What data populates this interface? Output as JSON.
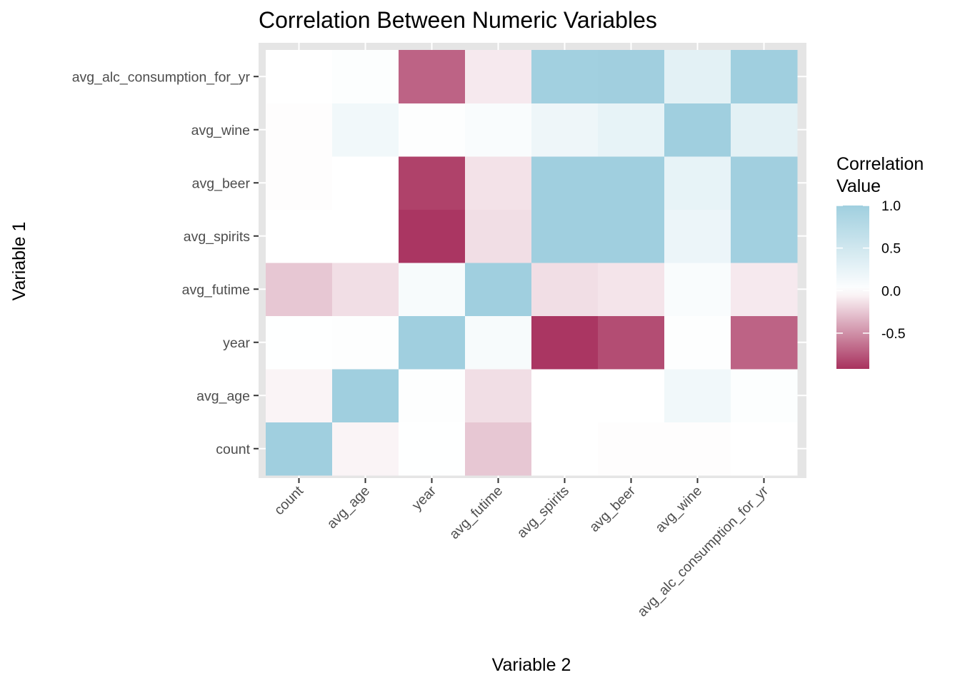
{
  "chart_data": {
    "type": "heatmap",
    "title": "Correlation Between Numeric Variables",
    "xlabel": "Variable 2",
    "ylabel": "Variable 1",
    "x_categories": [
      "count",
      "avg_age",
      "year",
      "avg_futime",
      "avg_spirits",
      "avg_beer",
      "avg_wine",
      "avg_alc_consumption_for_yr"
    ],
    "y_categories": [
      "count",
      "avg_age",
      "year",
      "avg_futime",
      "avg_spirits",
      "avg_beer",
      "avg_wine",
      "avg_alc_consumption_for_yr"
    ],
    "values": [
      [
        1.0,
        -0.05,
        0.01,
        -0.25,
        0.0,
        -0.01,
        -0.01,
        0.0
      ],
      [
        -0.05,
        1.0,
        0.02,
        -0.15,
        0.0,
        0.0,
        0.15,
        0.03
      ],
      [
        0.01,
        0.02,
        1.0,
        0.08,
        -0.9,
        -0.8,
        0.02,
        -0.7
      ],
      [
        -0.25,
        -0.15,
        0.08,
        1.0,
        -0.15,
        -0.12,
        0.06,
        -0.1
      ],
      [
        0.0,
        0.0,
        -0.9,
        -0.15,
        1.0,
        1.0,
        0.2,
        0.98
      ],
      [
        -0.01,
        0.0,
        -0.85,
        -0.13,
        1.0,
        1.0,
        0.25,
        0.99
      ],
      [
        -0.01,
        0.15,
        0.02,
        0.06,
        0.18,
        0.25,
        1.0,
        0.3
      ],
      [
        0.0,
        0.03,
        -0.7,
        -0.1,
        0.98,
        0.99,
        0.3,
        1.0
      ]
    ],
    "color_scale": {
      "low": "#a8325e",
      "mid": "#ffffff",
      "high": "#a0cfdf",
      "min": -0.92,
      "max": 1.0
    },
    "legend": {
      "title": [
        "Correlation",
        "Value"
      ],
      "breaks": [
        1.0,
        0.5,
        0.0,
        -0.5
      ],
      "labels": [
        "1.0",
        "0.5",
        "0.0",
        "-0.5"
      ],
      "position": "right"
    },
    "panel_background": "#e5e5e5",
    "grid": true
  }
}
